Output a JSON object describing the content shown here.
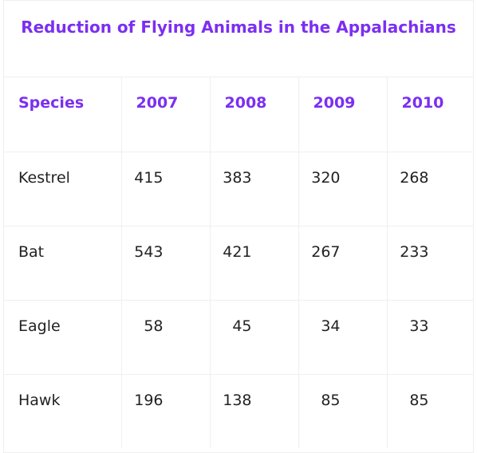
{
  "title": "Reduction of Flying Animals in the Appalachians",
  "headers": [
    "Species",
    "2007",
    "2008",
    "2009",
    "2010"
  ],
  "rows": [
    {
      "species": "Kestrel",
      "values": [
        "415",
        "383",
        "320",
        "268"
      ]
    },
    {
      "species": "Bat",
      "values": [
        "543",
        "421",
        "267",
        "233"
      ]
    },
    {
      "species": "Eagle",
      "values": [
        "58",
        "45",
        "34",
        "33"
      ]
    },
    {
      "species": "Hawk",
      "values": [
        "196",
        "138",
        "85",
        "85"
      ]
    }
  ],
  "colors": {
    "accent": "#7b2ff2",
    "text": "#222222",
    "grid": "#efefef"
  }
}
